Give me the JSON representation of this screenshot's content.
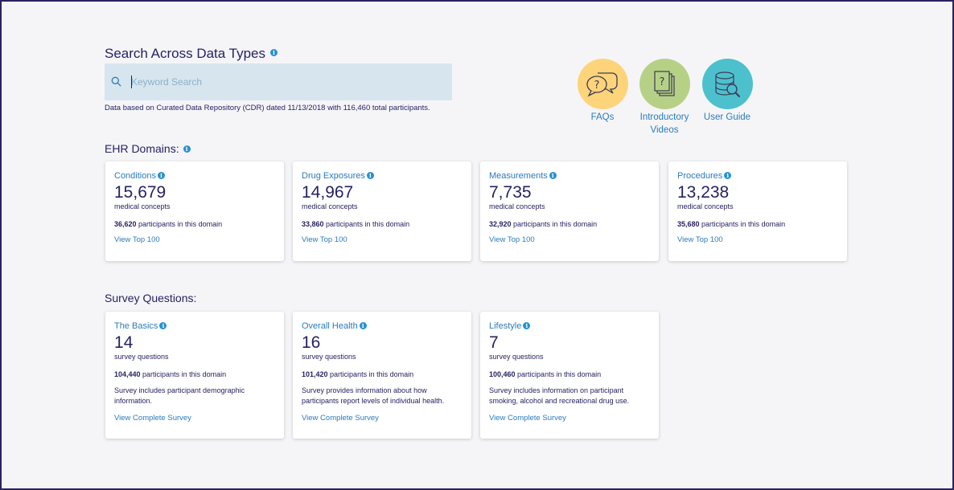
{
  "search": {
    "title": "Search Across Data Types",
    "placeholder": "Keyword Search",
    "cdr_note": "Data based on Curated Data Repository (CDR) dated 11/13/2018 with 116,460 total participants."
  },
  "help": [
    {
      "label": "FAQs",
      "color": "#fdd47a"
    },
    {
      "label": "Introductory Videos",
      "color": "#b6d186"
    },
    {
      "label": "User Guide",
      "color": "#4cc1cd"
    }
  ],
  "ehr": {
    "title": "EHR Domains:",
    "cards": [
      {
        "title": "Conditions",
        "count": "15,679",
        "unit": "medical concepts",
        "participants": "36,620",
        "participants_suffix": " participants in this domain",
        "link": "View Top 100"
      },
      {
        "title": "Drug Exposures",
        "count": "14,967",
        "unit": "medical concepts",
        "participants": "33,860",
        "participants_suffix": " participants in this domain",
        "link": "View Top 100"
      },
      {
        "title": "Measurements",
        "count": "7,735",
        "unit": "medical concepts",
        "participants": "32,920",
        "participants_suffix": " participants in this domain",
        "link": "View Top 100"
      },
      {
        "title": "Procedures",
        "count": "13,238",
        "unit": "medical concepts",
        "participants": "35,680",
        "participants_suffix": " participants in this domain",
        "link": "View Top 100"
      }
    ]
  },
  "survey": {
    "title": "Survey Questions:",
    "cards": [
      {
        "title": "The Basics",
        "count": "14",
        "unit": "survey questions",
        "participants": "104,440",
        "participants_suffix": " participants in this domain",
        "description": "Survey includes participant demographic information.",
        "link": "View Complete Survey"
      },
      {
        "title": "Overall Health",
        "count": "16",
        "unit": "survey questions",
        "participants": "101,420",
        "participants_suffix": " participants in this domain",
        "description": "Survey provides information about how participants report levels of individual health.",
        "link": "View Complete Survey"
      },
      {
        "title": "Lifestyle",
        "count": "7",
        "unit": "survey questions",
        "participants": "100,460",
        "participants_suffix": " participants in this domain",
        "description": "Survey includes information on participant smoking, alcohol and recreational drug use.",
        "link": "View Complete Survey"
      }
    ]
  }
}
